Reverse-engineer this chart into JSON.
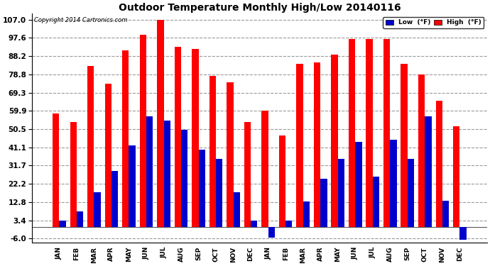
{
  "title": "Outdoor Temperature Monthly High/Low 20140116",
  "copyright": "Copyright 2014 Cartronics.com",
  "months": [
    "JAN",
    "FEB",
    "MAR",
    "APR",
    "MAY",
    "JUN",
    "JUL",
    "AUG",
    "SEP",
    "OCT",
    "NOV",
    "DEC",
    "JAN",
    "FEB",
    "MAR",
    "APR",
    "MAY",
    "JUN",
    "JUL",
    "AUG",
    "SEP",
    "OCT",
    "NOV",
    "DEC"
  ],
  "high_vals": [
    58.5,
    54.0,
    83.0,
    74.0,
    91.0,
    99.0,
    107.0,
    93.0,
    92.0,
    78.0,
    74.5,
    54.0,
    60.0,
    47.0,
    84.0,
    85.0,
    89.0,
    97.0,
    97.0,
    97.0,
    84.0,
    78.8,
    65.0,
    52.0
  ],
  "low_vals": [
    3.4,
    8.0,
    18.0,
    29.0,
    42.0,
    57.0,
    55.0,
    50.0,
    40.0,
    35.0,
    18.0,
    3.4,
    -5.5,
    3.4,
    13.0,
    25.0,
    35.0,
    44.0,
    26.0,
    45.0,
    35.0,
    57.0,
    13.5,
    -6.5
  ],
  "high_color": "#ff0000",
  "low_color": "#0000cc",
  "bg_color": "#ffffff",
  "grid_color": "#999999",
  "yticks": [
    -6.0,
    3.4,
    12.8,
    22.2,
    31.7,
    41.1,
    50.5,
    59.9,
    69.3,
    78.8,
    88.2,
    97.6,
    107.0
  ],
  "ylim": [
    -8.0,
    110.0
  ],
  "bar_width": 0.38
}
